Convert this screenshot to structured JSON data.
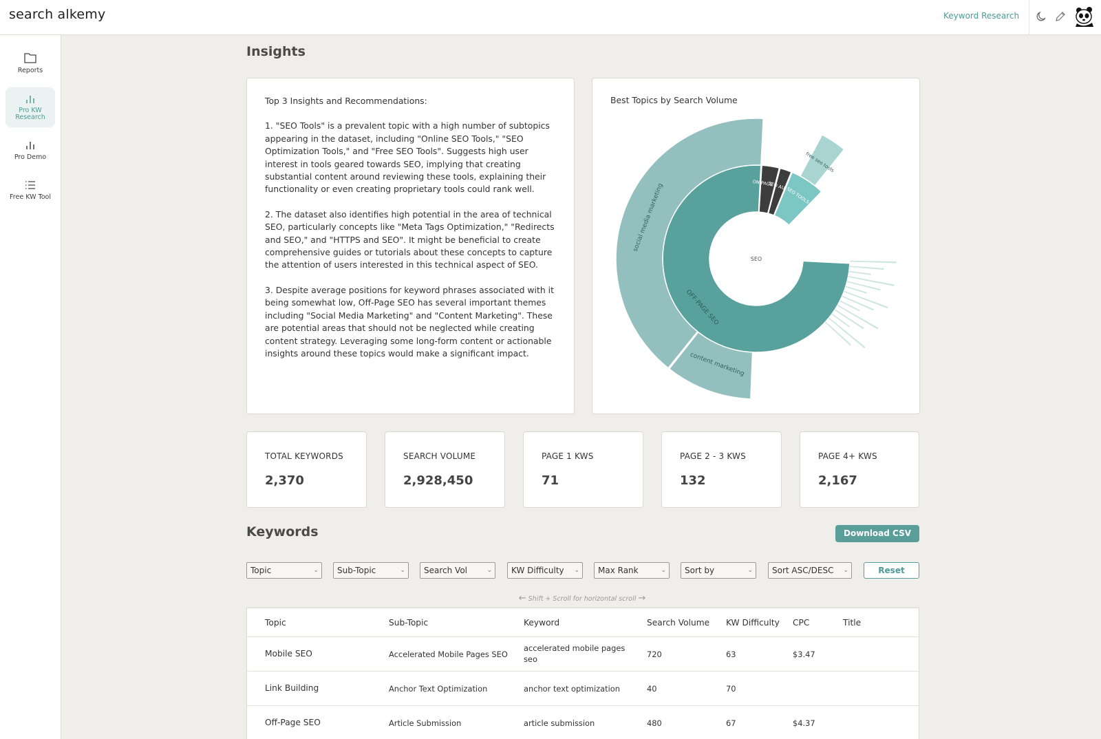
{
  "app": {
    "logo": "search alkemy"
  },
  "header": {
    "nav_link": "Keyword Research",
    "icons": [
      "moon-icon",
      "pencil-icon",
      "panda-avatar"
    ]
  },
  "sidebar": {
    "items": [
      {
        "label": "Reports",
        "icon": "folder-icon"
      },
      {
        "label": "Pro KW Research",
        "icon": "bar-chart-icon",
        "active": true
      },
      {
        "label": "Pro Demo",
        "icon": "bar-chart-icon"
      },
      {
        "label": "Free KW Tool",
        "icon": "list-icon"
      }
    ]
  },
  "insights": {
    "heading": "Insights",
    "text_title": "Top 3 Insights and Recommendations:",
    "points": [
      "1. \"SEO Tools\" is a prevalent topic with a high number of subtopics appearing in the dataset, including \"Online SEO Tools,\" \"SEO Optimization Tools,\" and \"Free SEO Tools\". Suggests high user interest in tools geared towards SEO, implying that creating substantial content around reviewing these tools, explaining their functionality or even creating proprietary tools could rank well.",
      "2. The dataset also identifies high potential in the area of technical SEO, particularly concepts like \"Meta Tags Optimization,\" \"Redirects and SEO,\" and \"HTTPS and SEO\". It might be beneficial to create comprehensive guides or tutorials about these concepts to capture the attention of users interested in this technical aspect of SEO.",
      "3. Despite average positions for keyword phrases associated with it being somewhat low, Off-Page SEO has several important themes including \"Social Media Marketing\" and \"Content Marketing\". These are potential areas that should not be neglected while creating content strategy. Leveraging some long-form content or actionable insights around these topics would make a significant impact."
    ],
    "chart_title": "Best Topics by Search Volume"
  },
  "chart_data": {
    "type": "sunburst",
    "title": "Best Topics by Search Volume",
    "root": "SEO",
    "rings": [
      {
        "level": 1,
        "segments": [
          {
            "label": "OFF-PAGE SEO",
            "share": 0.75,
            "color": "#58a19c"
          },
          {
            "label": "ON-PAGE SEO",
            "share": 0.03,
            "color": "#3d3d3d"
          },
          {
            "label": "SEO AUDIT",
            "share": 0.02,
            "color": "#3d3d3d"
          },
          {
            "label": "SEO TOOLS",
            "share": 0.06,
            "color": "#7cc6c3"
          }
        ]
      },
      {
        "level": 2,
        "segments": [
          {
            "label": "social media marketing",
            "parent": "OFF-PAGE SEO",
            "share": 0.4,
            "color": "#93c0be"
          },
          {
            "label": "content marketing",
            "parent": "OFF-PAGE SEO",
            "share": 0.1,
            "color": "#93c0be"
          },
          {
            "label": "free seo tools",
            "parent": "SEO TOOLS",
            "share": 0.03,
            "color": "#a9d4d2"
          }
        ]
      }
    ]
  },
  "stats": [
    {
      "label": "TOTAL KEYWORDS",
      "value": "2,370"
    },
    {
      "label": "SEARCH VOLUME",
      "value": "2,928,450"
    },
    {
      "label": "PAGE 1 KWS",
      "value": "71"
    },
    {
      "label": "PAGE 2 - 3 KWS",
      "value": "132"
    },
    {
      "label": "PAGE 4+ KWS",
      "value": "2,167"
    }
  ],
  "keywords": {
    "heading": "Keywords",
    "download_label": "Download CSV",
    "filters": [
      "Topic",
      "Sub-Topic",
      "Search Vol",
      "KW Difficulty",
      "Max Rank",
      "Sort by",
      "Sort ASC/DESC"
    ],
    "reset_label": "Reset",
    "scroll_hint": "Shift + Scroll for horizontal scroll",
    "columns": [
      "Topic",
      "Sub-Topic",
      "Keyword",
      "Search Volume",
      "KW Difficulty",
      "CPC",
      "Title"
    ],
    "rows": [
      {
        "topic": "Mobile SEO",
        "subtopic": "Accelerated Mobile Pages SEO",
        "keyword": "accelerated mobile pages seo",
        "volume": "720",
        "difficulty": "63",
        "cpc": "$3.47",
        "title": ""
      },
      {
        "topic": "Link Building",
        "subtopic": "Anchor Text Optimization",
        "keyword": "anchor text optimization",
        "volume": "40",
        "difficulty": "70",
        "cpc": "",
        "title": ""
      },
      {
        "topic": "Off-Page SEO",
        "subtopic": "Article Submission",
        "keyword": "article submission",
        "volume": "480",
        "difficulty": "67",
        "cpc": "$4.37",
        "title": ""
      }
    ]
  }
}
